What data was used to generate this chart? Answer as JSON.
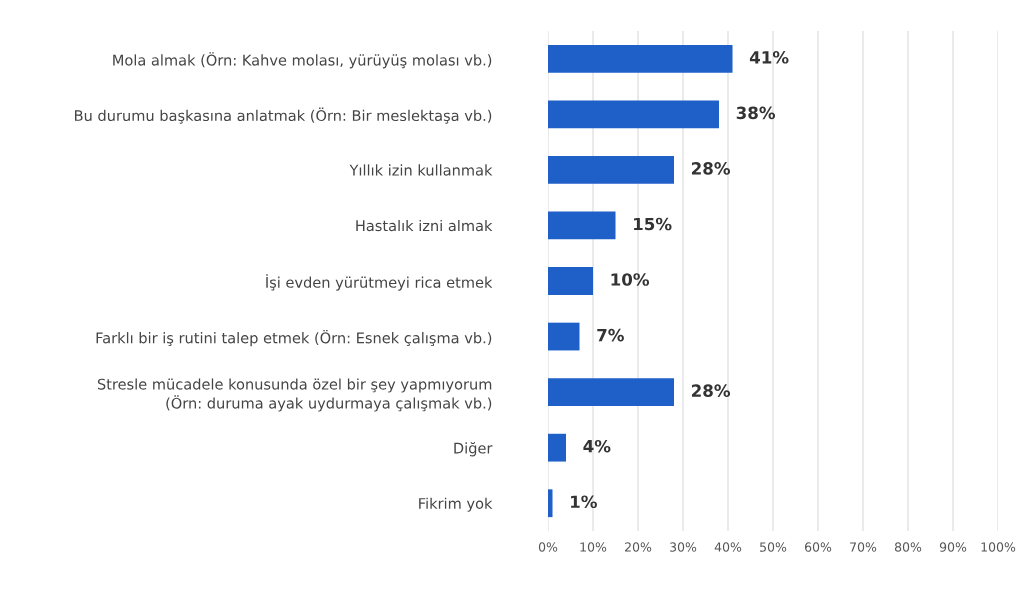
{
  "chart_data": {
    "type": "bar",
    "orientation": "horizontal",
    "categories": [
      "Mola almak (Örn: Kahve molası, yürüyüş molası vb.)",
      "Bu durumu başkasına anlatmak (Örn: Bir meslektaşa vb.)",
      "Yıllık izin kullanmak",
      "Hastalık izni almak",
      "İşi evden yürütmeyi rica etmek",
      "Farklı bir iş rutini talep etmek (Örn: Esnek çalışma vb.)",
      "Stresle mücadele konusunda özel bir şey yapmıyorum\n(Örn: duruma ayak uydurmaya çalışmak vb.)",
      "Diğer",
      "Fikrim yok"
    ],
    "values": [
      41,
      38,
      28,
      15,
      10,
      7,
      28,
      4,
      1
    ],
    "value_labels": [
      "41%",
      "38%",
      "28%",
      "15%",
      "10%",
      "7%",
      "28%",
      "4%",
      "1%"
    ],
    "color": "#1f5fc8",
    "xlim": [
      0,
      100
    ],
    "xticks": [
      {
        "value": 0,
        "label": "0%"
      },
      {
        "value": 10,
        "label": "10%"
      },
      {
        "value": 20,
        "label": "20%"
      },
      {
        "value": 30,
        "label": "30%"
      },
      {
        "value": 40,
        "label": "40%"
      },
      {
        "value": 50,
        "label": "50%"
      },
      {
        "value": 60,
        "label": "60%"
      },
      {
        "value": 70,
        "label": "70%"
      },
      {
        "value": 80,
        "label": "80%"
      },
      {
        "value": 90,
        "label": "90%"
      },
      {
        "value": 100,
        "label": "100%"
      }
    ],
    "grid": "x",
    "legend": false
  }
}
